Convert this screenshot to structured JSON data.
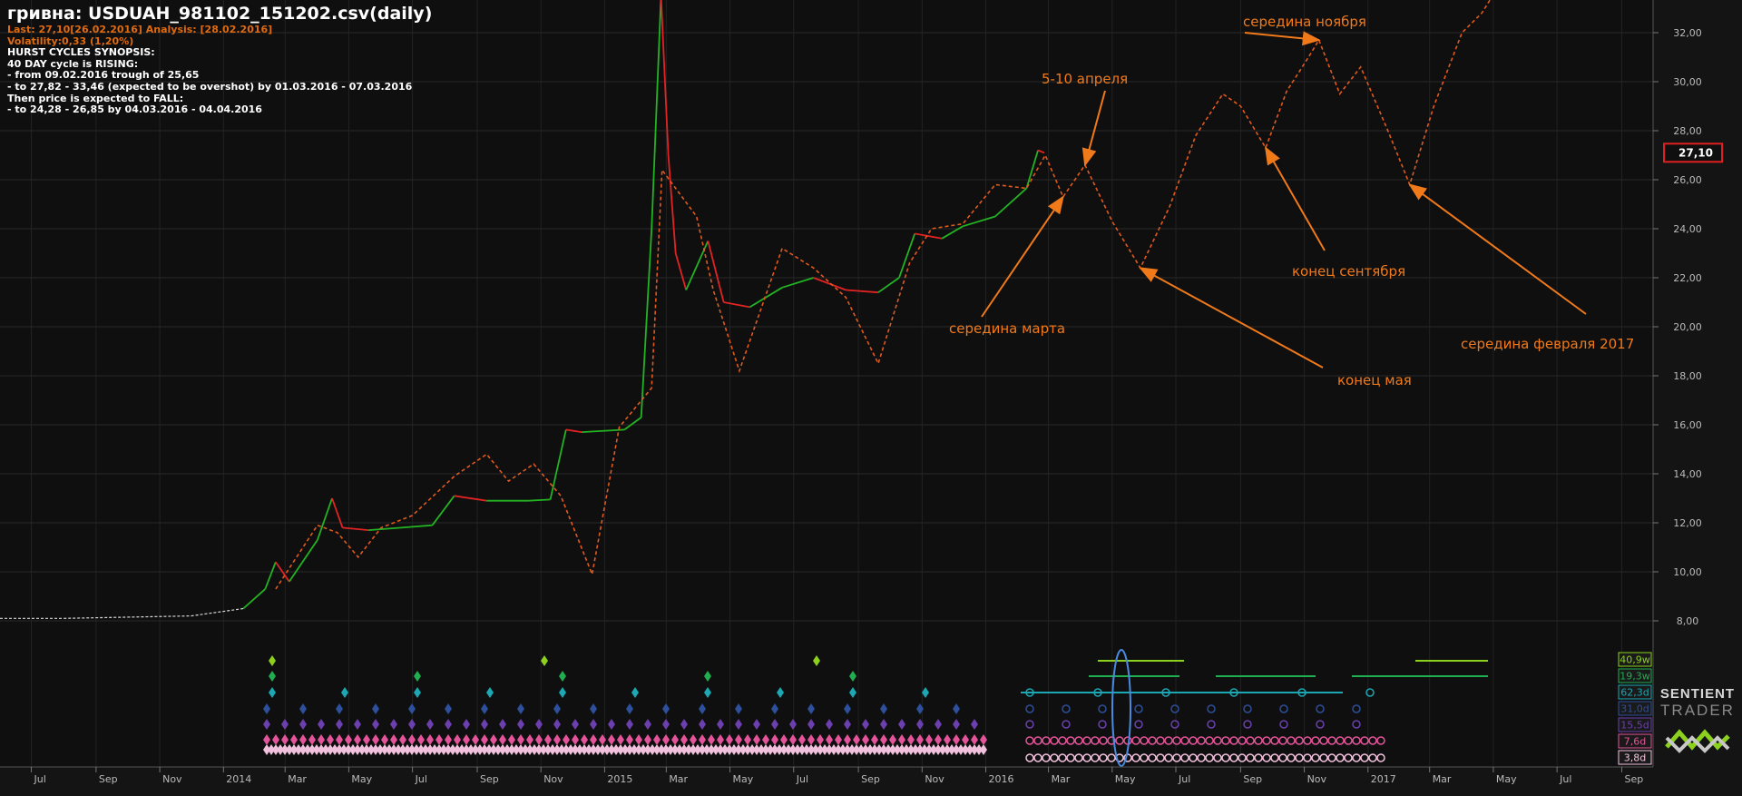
{
  "header": {
    "title": "гривна: USDUAH_981102_151202.csv(daily)",
    "last_line": "Last: 27,10[26.02.2016] Analysis: [28.02.2016]",
    "volatility": "Volatility:0,33 (1,20%)",
    "synopsis": [
      "HURST CYCLES SYNOPSIS:",
      "40 DAY cycle is RISING:",
      "- from 09.02.2016 trough of 25,65",
      "- to 27,82 - 33,46 (expected to be overshot) by 01.03.2016 - 07.03.2016",
      "Then price is expected to FALL:",
      "- to 24,28 - 26,85 by 04.03.2016 - 04.04.2016"
    ]
  },
  "chart_data": {
    "type": "line",
    "y_ticks": [
      "8,00",
      "10,00",
      "12,00",
      "14,00",
      "16,00",
      "18,00",
      "20,00",
      "22,00",
      "24,00",
      "26,00",
      "28,00",
      "30,00",
      "32,00"
    ],
    "ylim": [
      6.0,
      34.0
    ],
    "x_ticks": [
      "Jul",
      "Sep",
      "Nov",
      "2014",
      "Mar",
      "May",
      "Jul",
      "Sep",
      "Nov",
      "2015",
      "Mar",
      "May",
      "Jul",
      "Sep",
      "Nov",
      "2016",
      "Mar",
      "May",
      "Jul",
      "Sep",
      "Nov",
      "2017",
      "Mar",
      "May",
      "Jul",
      "Sep"
    ],
    "last_price_label": "27,10",
    "price_series": [
      {
        "t": "2013-06-01",
        "v": 8.1
      },
      {
        "t": "2013-08-01",
        "v": 8.1
      },
      {
        "t": "2013-10-01",
        "v": 8.15
      },
      {
        "t": "2013-12-01",
        "v": 8.2
      },
      {
        "t": "2014-01-20",
        "v": 8.5
      },
      {
        "t": "2014-02-10",
        "v": 9.3
      },
      {
        "t": "2014-02-20",
        "v": 10.4
      },
      {
        "t": "2014-03-05",
        "v": 9.6
      },
      {
        "t": "2014-04-01",
        "v": 11.3
      },
      {
        "t": "2014-04-15",
        "v": 13.0
      },
      {
        "t": "2014-04-25",
        "v": 11.8
      },
      {
        "t": "2014-05-20",
        "v": 11.7
      },
      {
        "t": "2014-06-20",
        "v": 11.8
      },
      {
        "t": "2014-07-20",
        "v": 11.9
      },
      {
        "t": "2014-08-10",
        "v": 13.1
      },
      {
        "t": "2014-09-10",
        "v": 12.9
      },
      {
        "t": "2014-10-20",
        "v": 12.9
      },
      {
        "t": "2014-11-10",
        "v": 12.95
      },
      {
        "t": "2014-11-25",
        "v": 15.8
      },
      {
        "t": "2014-12-10",
        "v": 15.7
      },
      {
        "t": "2015-01-20",
        "v": 15.8
      },
      {
        "t": "2015-02-05",
        "v": 16.3
      },
      {
        "t": "2015-02-15",
        "v": 24.0
      },
      {
        "t": "2015-02-24",
        "v": 33.5
      },
      {
        "t": "2015-03-03",
        "v": 27.0
      },
      {
        "t": "2015-03-10",
        "v": 23.0
      },
      {
        "t": "2015-03-20",
        "v": 21.5
      },
      {
        "t": "2015-04-10",
        "v": 23.5
      },
      {
        "t": "2015-04-25",
        "v": 21.0
      },
      {
        "t": "2015-05-20",
        "v": 20.8
      },
      {
        "t": "2015-06-20",
        "v": 21.6
      },
      {
        "t": "2015-07-20",
        "v": 22.0
      },
      {
        "t": "2015-08-20",
        "v": 21.5
      },
      {
        "t": "2015-09-20",
        "v": 21.4
      },
      {
        "t": "2015-10-10",
        "v": 22.0
      },
      {
        "t": "2015-10-25",
        "v": 23.8
      },
      {
        "t": "2015-11-20",
        "v": 23.6
      },
      {
        "t": "2015-12-10",
        "v": 24.1
      },
      {
        "t": "2016-01-10",
        "v": 24.5
      },
      {
        "t": "2016-02-09",
        "v": 25.65
      },
      {
        "t": "2016-02-20",
        "v": 27.2
      },
      {
        "t": "2016-02-26",
        "v": 27.1
      }
    ],
    "projection_series": [
      {
        "t": "2014-02-20",
        "v": 9.3
      },
      {
        "t": "2014-04-01",
        "v": 11.9
      },
      {
        "t": "2014-04-20",
        "v": 11.6
      },
      {
        "t": "2014-05-10",
        "v": 10.6
      },
      {
        "t": "2014-06-01",
        "v": 11.8
      },
      {
        "t": "2014-07-01",
        "v": 12.3
      },
      {
        "t": "2014-08-10",
        "v": 13.9
      },
      {
        "t": "2014-09-10",
        "v": 14.8
      },
      {
        "t": "2014-10-01",
        "v": 13.7
      },
      {
        "t": "2014-10-25",
        "v": 14.4
      },
      {
        "t": "2014-11-20",
        "v": 13.1
      },
      {
        "t": "2014-12-20",
        "v": 9.9
      },
      {
        "t": "2015-01-15",
        "v": 15.9
      },
      {
        "t": "2015-02-15",
        "v": 17.5
      },
      {
        "t": "2015-02-25",
        "v": 26.4
      },
      {
        "t": "2015-03-30",
        "v": 24.5
      },
      {
        "t": "2015-04-15",
        "v": 21.5
      },
      {
        "t": "2015-05-10",
        "v": 18.2
      },
      {
        "t": "2015-06-20",
        "v": 23.2
      },
      {
        "t": "2015-07-20",
        "v": 22.4
      },
      {
        "t": "2015-08-20",
        "v": 21.2
      },
      {
        "t": "2015-09-20",
        "v": 18.5
      },
      {
        "t": "2015-10-20",
        "v": 22.6
      },
      {
        "t": "2015-11-10",
        "v": 24.0
      },
      {
        "t": "2015-12-10",
        "v": 24.2
      },
      {
        "t": "2016-01-10",
        "v": 25.8
      },
      {
        "t": "2016-02-09",
        "v": 25.65
      },
      {
        "t": "2016-02-27",
        "v": 27.0
      },
      {
        "t": "2016-03-15",
        "v": 25.3
      },
      {
        "t": "2016-04-05",
        "v": 26.6
      },
      {
        "t": "2016-05-01",
        "v": 24.3
      },
      {
        "t": "2016-05-28",
        "v": 22.4
      },
      {
        "t": "2016-06-25",
        "v": 24.9
      },
      {
        "t": "2016-07-20",
        "v": 27.8
      },
      {
        "t": "2016-08-15",
        "v": 29.5
      },
      {
        "t": "2016-09-01",
        "v": 29.0
      },
      {
        "t": "2016-09-25",
        "v": 27.3
      },
      {
        "t": "2016-10-15",
        "v": 29.6
      },
      {
        "t": "2016-11-05",
        "v": 31.0
      },
      {
        "t": "2016-11-15",
        "v": 31.7
      },
      {
        "t": "2016-12-05",
        "v": 29.5
      },
      {
        "t": "2016-12-25",
        "v": 30.6
      },
      {
        "t": "2017-01-20",
        "v": 28.0
      },
      {
        "t": "2017-02-10",
        "v": 25.8
      },
      {
        "t": "2017-03-05",
        "v": 29.0
      },
      {
        "t": "2017-04-01",
        "v": 32.0
      },
      {
        "t": "2017-04-20",
        "v": 32.8
      },
      {
        "t": "2017-05-15",
        "v": 34.5
      }
    ],
    "annotations": [
      {
        "text": "середина ноября",
        "t": "2016-11-15",
        "v": 31.7
      },
      {
        "text": "5-10 апреля",
        "t": "2016-04-05",
        "v": 26.6
      },
      {
        "text": "конец сентября",
        "t": "2016-09-25",
        "v": 27.3
      },
      {
        "text": "середина марта",
        "t": "2016-03-15",
        "v": 25.3
      },
      {
        "text": "середина февраля 2017",
        "t": "2017-02-10",
        "v": 25.8
      },
      {
        "text": "конец мая",
        "t": "2016-05-28",
        "v": 22.4
      }
    ],
    "cycle_labels": [
      {
        "text": "40,9w",
        "color": "#8bd11e"
      },
      {
        "text": "19,3w",
        "color": "#1fae50"
      },
      {
        "text": "62,3d",
        "color": "#1ba7b3"
      },
      {
        "text": "31,0d",
        "color": "#2d4f9c"
      },
      {
        "text": "15,5d",
        "color": "#6b3fae"
      },
      {
        "text": "7,6d",
        "color": "#e4549a"
      },
      {
        "text": "3,8d",
        "color": "#f1c0dc"
      }
    ]
  },
  "logo": {
    "line1": "SENTIENT",
    "line2": "TRADER"
  }
}
